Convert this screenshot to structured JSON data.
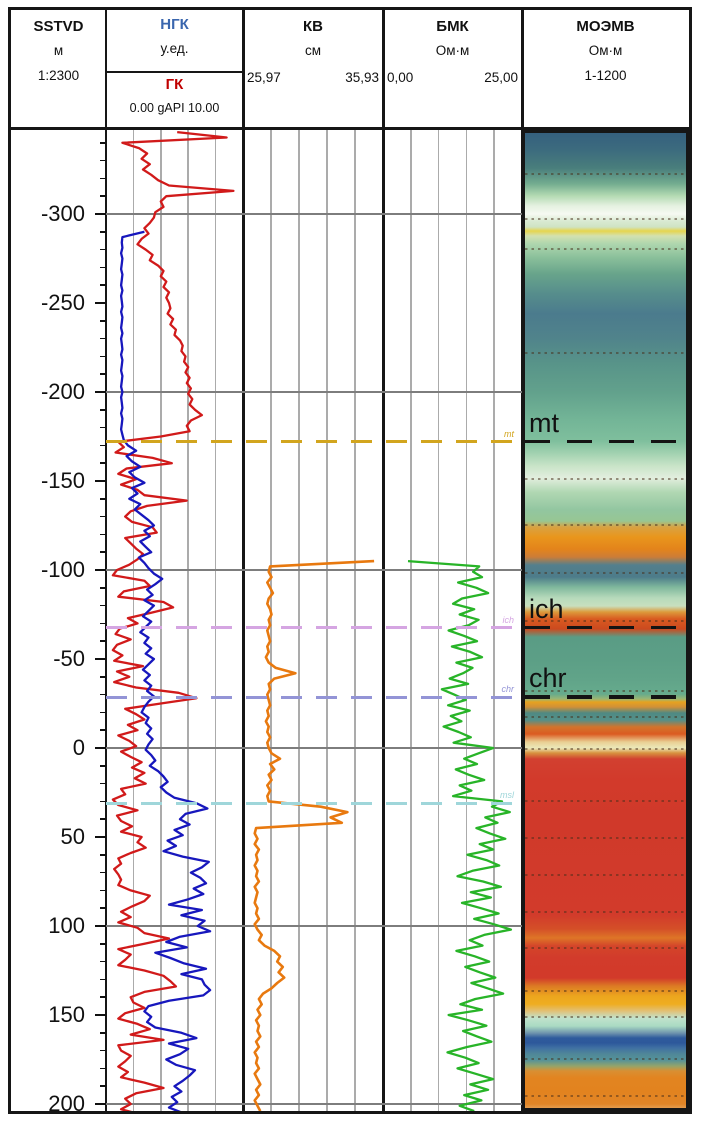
{
  "header": {
    "sstvd": {
      "title": "SSTVD",
      "unit": "м",
      "scale": "1:2300"
    },
    "ngk": {
      "title": "НГК",
      "unit": "у.ед.",
      "title_color": "#3a66ae"
    },
    "gk": {
      "title": "ГК",
      "range": "0.00 gAPI 10.00",
      "title_color": "#c00000"
    },
    "kv": {
      "title": "КВ",
      "unit": "см",
      "min": "25,97",
      "max": "35,93"
    },
    "bmk": {
      "title": "БМК",
      "unit": "Ом·м",
      "min": "0,00",
      "max": "25,00"
    },
    "moemv": {
      "title": "МОЭМВ",
      "unit": "Ом·м",
      "range": "1-1200"
    }
  },
  "depth_axis": {
    "unit": "м",
    "scale": "1:2300",
    "minor_tick_m": 10,
    "major_tick_m": 50,
    "grid_interval_m": 100,
    "labels": [
      -300,
      -250,
      -200,
      -150,
      -100,
      -50,
      0,
      50,
      100,
      150,
      200
    ],
    "depth_at_plot_top": -347,
    "depth_at_plot_bottom": 204
  },
  "markers": [
    {
      "id": "mt",
      "label": "mt",
      "depth": -172,
      "line_color": "#d2a51e",
      "panel_dash": true,
      "big_label": true
    },
    {
      "id": "ich",
      "label": "ich",
      "depth": -67.5,
      "line_color": "#d5a5e2",
      "panel_dash": true,
      "big_label": true
    },
    {
      "id": "chr",
      "label": "chr",
      "depth": -28.5,
      "line_color": "#9394d6",
      "panel_dash": true,
      "big_label": true
    },
    {
      "id": "msl",
      "label": "msl",
      "depth": 31,
      "line_color": "#9fd6da",
      "panel_dash": false,
      "big_label": false
    }
  ],
  "chart_data": [
    {
      "type": "line",
      "track": "НГК/ГК",
      "depth_unit": "м",
      "series": [
        {
          "name": "ГК",
          "unit": "gAPI",
          "color": "#d11a1a",
          "scale_min": 0,
          "scale_max": 10,
          "depth_start": -346,
          "depth_step": 3,
          "values": [
            5.2,
            8.8,
            1.2,
            2.4,
            3.0,
            2.6,
            3.2,
            2.7,
            3.3,
            3.8,
            4.6,
            9.3,
            4.4,
            4.0,
            4.2,
            3.6,
            3.5,
            3.2,
            2.8,
            3.1,
            2.6,
            2.3,
            2.9,
            3.4,
            3.2,
            3.8,
            4.2,
            4.0,
            4.4,
            4.2,
            4.6,
            4.4,
            4.6,
            4.7,
            4.5,
            4.9,
            4.7,
            5.1,
            5.0,
            5.4,
            5.6,
            5.5,
            5.8,
            5.7,
            6.0,
            5.8,
            6.1,
            5.9,
            6.2,
            6.0,
            6.3,
            6.1,
            6.5,
            7.0,
            6.2,
            5.9,
            6.1,
            4.0,
            0.9,
            1.3,
            0.7,
            3.4,
            4.8,
            1.5,
            0.9,
            2.2,
            1.1,
            2.3,
            2.8,
            5.9,
            3.0,
            1.8,
            1.4,
            1.9,
            3.4,
            3.7,
            1.4,
            1.8,
            2.2,
            2.7,
            2.3,
            1.7,
            0.8,
            0.5,
            2.8,
            3.2,
            1.3,
            0.9,
            4.2,
            4.9,
            3.3,
            1.6,
            2.3,
            1.0,
            0.7,
            1.8,
            0.8,
            0.5,
            1.2,
            0.6,
            2.7,
            0.8,
            1.7,
            0.6,
            2.2,
            5.3,
            6.6,
            4.0,
            1.4,
            2.2,
            2.8,
            1.6,
            2.3,
            0.9,
            1.7,
            2.2,
            1.1,
            1.8,
            2.6,
            1.9,
            2.8,
            2.1,
            2.9,
            1.1,
            1.4,
            0.5,
            0.9,
            2.3,
            0.8,
            1.1,
            1.9,
            1.1,
            2.6,
            2.3,
            2.9,
            1.8,
            0.9,
            1.1,
            0.6,
            0.9,
            1.1,
            0.9,
            1.8,
            3.2,
            2.8,
            1.9,
            1.1,
            1.8,
            0.9,
            2.3,
            2.8,
            4.6,
            2.8,
            0.9,
            1.8,
            1.4,
            0.9,
            2.8,
            4.2,
            4.7,
            5.1,
            2.8,
            1.8,
            2.0,
            2.8,
            1.4,
            0.9,
            2.3,
            3.2,
            1.8,
            4.2,
            0.9,
            1.1,
            1.8,
            1.4,
            0.9,
            1.6,
            1.1,
            2.8,
            4.2,
            2.2,
            1.4,
            1.8,
            1.1,
            2.6
          ]
        },
        {
          "name": "НГК",
          "unit": "у.ед. (track fraction)",
          "color": "#1717bd",
          "scale_min": 0,
          "scale_max": 1,
          "depth_start": -290,
          "depth_step": 3,
          "values": [
            0.28,
            0.12,
            0.115,
            0.12,
            0.11,
            0.12,
            0.115,
            0.11,
            0.12,
            0.115,
            0.11,
            0.12,
            0.11,
            0.115,
            0.12,
            0.11,
            0.12,
            0.115,
            0.11,
            0.12,
            0.11,
            0.115,
            0.12,
            0.11,
            0.12,
            0.115,
            0.11,
            0.12,
            0.115,
            0.11,
            0.12,
            0.11,
            0.115,
            0.12,
            0.11,
            0.12,
            0.115,
            0.11,
            0.12,
            0.13,
            0.16,
            0.22,
            0.15,
            0.19,
            0.25,
            0.17,
            0.21,
            0.28,
            0.19,
            0.23,
            0.17,
            0.25,
            0.21,
            0.26,
            0.31,
            0.35,
            0.28,
            0.32,
            0.25,
            0.29,
            0.33,
            0.24,
            0.28,
            0.31,
            0.35,
            0.41,
            0.36,
            0.3,
            0.34,
            0.28,
            0.35,
            0.31,
            0.27,
            0.33,
            0.29,
            0.25,
            0.31,
            0.28,
            0.33,
            0.29,
            0.35,
            0.31,
            0.27,
            0.32,
            0.28,
            0.33,
            0.3,
            0.35,
            0.31,
            0.28,
            0.26,
            0.31,
            0.29,
            0.33,
            0.3,
            0.34,
            0.31,
            0.29,
            0.33,
            0.36,
            0.32,
            0.38,
            0.42,
            0.45,
            0.4,
            0.44,
            0.5,
            0.66,
            0.74,
            0.58,
            0.54,
            0.61,
            0.5,
            0.56,
            0.45,
            0.51,
            0.42,
            0.56,
            0.75,
            0.7,
            0.62,
            0.69,
            0.73,
            0.64,
            0.71,
            0.6,
            0.46,
            0.7,
            0.55,
            0.72,
            0.67,
            0.76,
            0.54,
            0.44,
            0.59,
            0.36,
            0.47,
            0.57,
            0.73,
            0.55,
            0.7,
            0.72,
            0.76,
            0.71,
            0.46,
            0.31,
            0.28,
            0.33,
            0.3,
            0.36,
            0.55,
            0.66,
            0.46,
            0.6,
            0.54,
            0.44,
            0.51,
            0.65,
            0.61,
            0.56,
            0.5,
            0.55,
            0.48,
            0.52,
            0.46,
            0.56
          ]
        }
      ]
    },
    {
      "type": "line",
      "track": "КВ",
      "depth_unit": "м",
      "series": [
        {
          "name": "КВ",
          "unit": "см",
          "color": "#e8790f",
          "scale_min": 25.97,
          "scale_max": 35.93,
          "depth_start": -105,
          "depth_step": 3,
          "values": [
            35.3,
            27.9,
            27.8,
            28.0,
            27.7,
            27.9,
            28.1,
            27.8,
            27.7,
            27.9,
            28.0,
            27.8,
            27.9,
            27.7,
            27.8,
            27.9,
            27.7,
            27.8,
            27.6,
            27.8,
            28.3,
            29.7,
            28.2,
            27.8,
            27.9,
            27.7,
            27.8,
            27.9,
            27.7,
            27.8,
            27.6,
            27.8,
            27.7,
            27.9,
            27.7,
            27.8,
            28.0,
            28.6,
            27.9,
            28.2,
            27.8,
            28.0,
            27.7,
            27.9,
            27.7,
            27.8,
            31.5,
            33.4,
            32.2,
            33.0,
            26.9,
            26.8,
            27.0,
            26.8,
            27.1,
            26.9,
            27.0,
            26.8,
            27.0,
            26.9,
            27.1,
            26.8,
            27.0,
            26.9,
            26.8,
            27.0,
            26.9,
            27.1,
            26.8,
            27.0,
            27.3,
            27.1,
            27.5,
            28.2,
            28.6,
            28.4,
            28.8,
            28.5,
            28.9,
            28.4,
            28.0,
            27.4,
            27.1,
            27.3,
            27.0,
            27.2,
            26.9,
            27.1,
            27.0,
            27.2,
            26.9,
            27.1,
            26.8,
            27.0,
            26.9,
            27.1,
            26.8,
            27.0,
            27.2,
            26.9,
            27.1,
            26.8,
            27.0,
            27.2
          ]
        }
      ]
    },
    {
      "type": "line",
      "track": "БМК",
      "depth_unit": "м",
      "series": [
        {
          "name": "БМК",
          "unit": "Ом·м",
          "color": "#28b428",
          "scale_min": 0,
          "scale_max": 25,
          "depth_start": -105,
          "depth_step": 3,
          "values": [
            4.5,
            17.3,
            16.2,
            17.8,
            13.5,
            16.8,
            18.9,
            14.2,
            12.6,
            16.4,
            13.8,
            17.2,
            15.4,
            11.8,
            14.6,
            16.9,
            12.4,
            15.7,
            17.8,
            13.2,
            16.1,
            14.4,
            12.0,
            15.3,
            10.6,
            12.8,
            14.9,
            11.7,
            15.6,
            12.2,
            14.1,
            10.9,
            13.6,
            15.8,
            12.7,
            19.8,
            17.2,
            14.6,
            16.9,
            13.1,
            15.4,
            18.2,
            13.8,
            15.9,
            12.6,
            21.4,
            19.6,
            22.8,
            18.4,
            20.6,
            16.8,
            19.2,
            22.0,
            17.4,
            19.8,
            15.2,
            18.6,
            20.9,
            16.1,
            13.4,
            18.0,
            21.2,
            15.8,
            19.4,
            14.2,
            17.6,
            20.8,
            16.4,
            19.9,
            23.0,
            18.2,
            15.6,
            17.9,
            13.2,
            16.5,
            19.1,
            14.8,
            17.4,
            20.2,
            15.9,
            18.8,
            21.6,
            16.6,
            13.9,
            17.8,
            11.8,
            15.4,
            18.6,
            14.4,
            16.9,
            19.5,
            15.1,
            11.6,
            14.8,
            17.2,
            13.4,
            16.6,
            19.8,
            15.7,
            18.9,
            14.6,
            17.7,
            13.8,
            16.4
          ]
        }
      ]
    },
    {
      "type": "heatmap",
      "track": "МОЭМВ",
      "unit": "Ом·м",
      "range_label": "1-1200",
      "gradient_stops": [
        [
          130,
          "#35607e"
        ],
        [
          150,
          "#3c6b7e"
        ],
        [
          168,
          "#497e7c"
        ],
        [
          184,
          "#74ad90"
        ],
        [
          196,
          "#b4dbb3"
        ],
        [
          206,
          "#e5f1e1"
        ],
        [
          214,
          "#f6f9f2"
        ],
        [
          221,
          "#d9ead2"
        ],
        [
          227,
          "#cfe3c3"
        ],
        [
          231,
          "#e6d54e"
        ],
        [
          236,
          "#d3e1b0"
        ],
        [
          244,
          "#aed6ae"
        ],
        [
          258,
          "#89bf9a"
        ],
        [
          274,
          "#68a48b"
        ],
        [
          294,
          "#568d8c"
        ],
        [
          314,
          "#4b7b8d"
        ],
        [
          338,
          "#50838b"
        ],
        [
          364,
          "#589489"
        ],
        [
          392,
          "#62a18c"
        ],
        [
          420,
          "#73b597"
        ],
        [
          441,
          "#7fbf9d"
        ],
        [
          453,
          "#a1d1b0"
        ],
        [
          466,
          "#c9e4c8"
        ],
        [
          478,
          "#e2eede"
        ],
        [
          492,
          "#b1d8b3"
        ],
        [
          510,
          "#92c6a0"
        ],
        [
          521,
          "#97c693"
        ],
        [
          527,
          "#d8a243"
        ],
        [
          537,
          "#e9961c"
        ],
        [
          549,
          "#e3841b"
        ],
        [
          557,
          "#cb7d38"
        ],
        [
          565,
          "#537f8d"
        ],
        [
          577,
          "#4d7c8a"
        ],
        [
          587,
          "#7eb79c"
        ],
        [
          598,
          "#b6dabb"
        ],
        [
          606,
          "#c8dfbf"
        ],
        [
          612,
          "#dd9a3b"
        ],
        [
          619,
          "#d95a20"
        ],
        [
          629,
          "#cc4a1f"
        ],
        [
          637,
          "#5a9c85"
        ],
        [
          660,
          "#5c9f86"
        ],
        [
          680,
          "#61a489"
        ],
        [
          694,
          "#66ab8d"
        ],
        [
          699,
          "#9bb673"
        ],
        [
          702,
          "#e6a220"
        ],
        [
          707,
          "#d19037"
        ],
        [
          713,
          "#4f8983"
        ],
        [
          720,
          "#549089"
        ],
        [
          727,
          "#d2742c"
        ],
        [
          734,
          "#db5b21"
        ],
        [
          742,
          "#e9cf93"
        ],
        [
          748,
          "#ebe8ba"
        ],
        [
          753,
          "#d8923f"
        ],
        [
          759,
          "#d24030"
        ],
        [
          780,
          "#d23a2b"
        ],
        [
          820,
          "#d0392a"
        ],
        [
          870,
          "#d13a2b"
        ],
        [
          915,
          "#d23b2b"
        ],
        [
          929,
          "#d44f28"
        ],
        [
          938,
          "#de7527"
        ],
        [
          946,
          "#d4452a"
        ],
        [
          958,
          "#d23b2b"
        ],
        [
          978,
          "#d23a2a"
        ],
        [
          986,
          "#dc7a24"
        ],
        [
          996,
          "#eca51e"
        ],
        [
          1004,
          "#efad20"
        ],
        [
          1011,
          "#e2c075"
        ],
        [
          1018,
          "#c1e2cc"
        ],
        [
          1026,
          "#aadbc3"
        ],
        [
          1033,
          "#6f94ad"
        ],
        [
          1038,
          "#2f5b9c"
        ],
        [
          1043,
          "#2d589b"
        ],
        [
          1048,
          "#4070a3"
        ],
        [
          1054,
          "#508798"
        ],
        [
          1060,
          "#549299"
        ],
        [
          1066,
          "#93a46b"
        ],
        [
          1071,
          "#d98f32"
        ],
        [
          1078,
          "#e28420"
        ],
        [
          1092,
          "#e2831f"
        ],
        [
          1104,
          "#e18527"
        ],
        [
          1111,
          "#e49c4e"
        ],
        [
          1115,
          "#f1d7ab"
        ],
        [
          1117,
          "#ffffff"
        ]
      ],
      "dotted_rows_y": [
        173,
        218,
        248,
        352,
        478,
        524,
        572,
        620,
        690,
        716,
        748,
        800,
        837,
        874,
        911,
        947,
        990,
        1016,
        1058,
        1095
      ]
    }
  ]
}
